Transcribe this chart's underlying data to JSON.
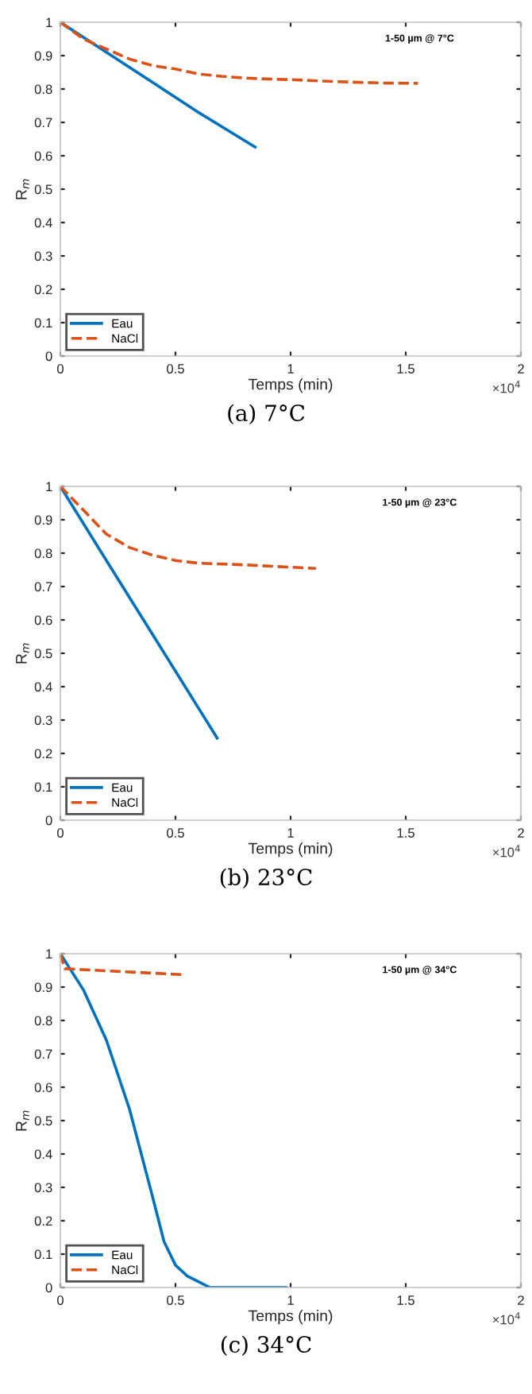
{
  "chart_data": [
    {
      "type": "line",
      "title": "1-50 µm @ 7°C",
      "xlabel": "Temps (min)",
      "ylabel": "R$_{m}$",
      "annotations": [
        "×10$^{4}$",
        "(a) 7°C"
      ],
      "xlim": [
        0,
        2
      ],
      "xticks": [
        0,
        0.5,
        1,
        1.5,
        2
      ],
      "ylim": [
        0,
        1
      ],
      "yticks": [
        0,
        0.1,
        0.2,
        0.3,
        0.4,
        0.5,
        0.6,
        0.7,
        0.8,
        0.9,
        1
      ],
      "grid": false,
      "legend": "bottom left",
      "marker": "none",
      "series": [
        {
          "name": "Eau",
          "color": "#0072bd",
          "line_style": "solid",
          "x": [
            0,
            0.2,
            0.4,
            0.6,
            0.846
          ],
          "values": [
            1,
            0.91,
            0.82,
            0.73,
            0.626
          ]
        },
        {
          "name": "NaCl",
          "color": "#d95319",
          "line_style": "dashed",
          "x": [
            0,
            0.1,
            0.2,
            0.3,
            0.4,
            0.5,
            0.6,
            0.7,
            0.8,
            0.9,
            1,
            1.1,
            1.2,
            1.3,
            1.4,
            1.553
          ],
          "values": [
            1,
            0.95,
            0.92,
            0.89,
            0.87,
            0.86,
            0.845,
            0.838,
            0.833,
            0.83,
            0.828,
            0.825,
            0.822,
            0.82,
            0.818,
            0.817
          ]
        }
      ]
    },
    {
      "type": "line",
      "title": "1-50 µm @ 23°C",
      "xlabel": "Temps (min)",
      "ylabel": "R$_{m}$",
      "annotations": [
        "×10$^{4}$",
        "(b) 23°C"
      ],
      "xlim": [
        0,
        2
      ],
      "xticks": [
        0,
        0.5,
        1,
        1.5,
        2
      ],
      "ylim": [
        0,
        1
      ],
      "yticks": [
        0,
        0.1,
        0.2,
        0.3,
        0.4,
        0.5,
        0.6,
        0.7,
        0.8,
        0.9,
        1
      ],
      "grid": false,
      "legend": "bottom left",
      "marker": "none",
      "series": [
        {
          "name": "Eau",
          "color": "#0072bd",
          "line_style": "solid",
          "x": [
            0,
            0.2,
            0.4,
            0.681
          ],
          "values": [
            1,
            0.778,
            0.557,
            0.246
          ]
        },
        {
          "name": "NaCl",
          "color": "#d95319",
          "line_style": "dashed",
          "x": [
            0,
            0.1,
            0.2,
            0.3,
            0.4,
            0.5,
            0.6,
            0.8,
            1.11
          ],
          "values": [
            1,
            0.929,
            0.857,
            0.817,
            0.794,
            0.778,
            0.77,
            0.765,
            0.754
          ]
        }
      ]
    },
    {
      "type": "line",
      "title": "1-50 µm @ 34°C",
      "xlabel": "Temps (min)",
      "ylabel": "R$_{m}$",
      "annotations": [
        "×10$^{4}$",
        "(c) 34°C"
      ],
      "xlim": [
        0,
        2
      ],
      "xticks": [
        0,
        0.5,
        1,
        1.5,
        2
      ],
      "ylim": [
        0,
        1
      ],
      "yticks": [
        0,
        0.1,
        0.2,
        0.3,
        0.4,
        0.5,
        0.6,
        0.7,
        0.8,
        0.9,
        1
      ],
      "grid": false,
      "legend": "bottom left",
      "marker": "none",
      "series": [
        {
          "name": "Eau",
          "color": "#0072bd",
          "line_style": "solid",
          "x": [
            0,
            0.1,
            0.2,
            0.3,
            0.4,
            0.45,
            0.5,
            0.55,
            0.65,
            0.7,
            0.98
          ],
          "values": [
            1,
            0.892,
            0.741,
            0.535,
            0.273,
            0.138,
            0.067,
            0.035,
            0,
            0,
            0
          ]
        },
        {
          "name": "NaCl",
          "color": "#d95319",
          "line_style": "dashed",
          "x": [
            0,
            0.02,
            0.54
          ],
          "values": [
            1,
            0.955,
            0.937
          ]
        }
      ]
    }
  ]
}
